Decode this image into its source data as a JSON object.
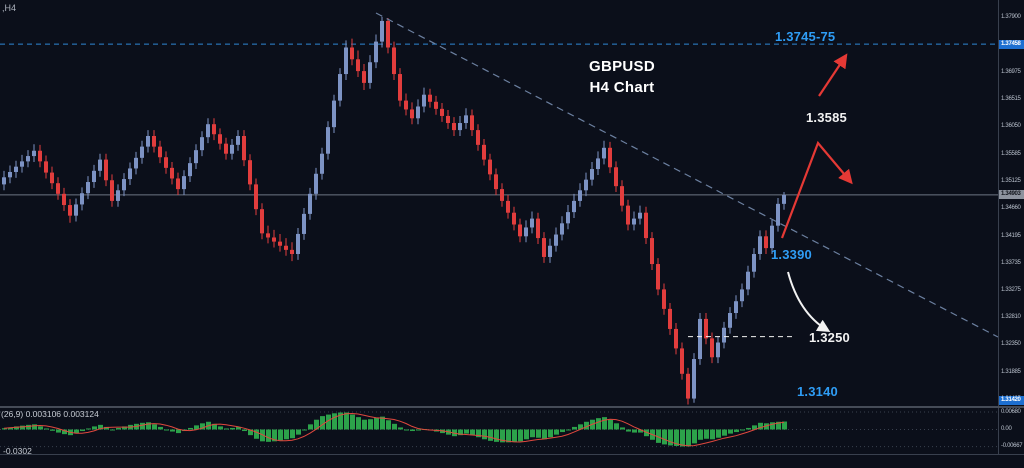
{
  "meta": {
    "symbol_label": ",H4",
    "indicator_label": "(26,9) 0.003106 0.003124",
    "indicator_sublabel": "-0.0302"
  },
  "colors": {
    "background": "#0b0f1a",
    "bull": "#7d93c4",
    "bear": "#e23d3d",
    "histogram": "#2ca24a",
    "signal": "#e0483e",
    "accent_blue": "#2f9df5",
    "zone_line_blue": "#2f86d4",
    "trendline": "#6c80a0",
    "arrow_red": "#e53935",
    "arrow_white": "#f2f2f2",
    "current_price_line": "#6e7683"
  },
  "annotations": {
    "title_line1": "GBPUSD",
    "title_line2": "H4 Chart",
    "level_zone": "1.3745-75",
    "level_3585": "1.3585",
    "level_3390": "1.3390",
    "level_3250": "1.3250",
    "level_3140": "1.3140"
  },
  "price_scale": {
    "ticks": [
      "1.37900",
      "1.37435",
      "1.36975",
      "1.36515",
      "1.36050",
      "1.35585",
      "1.35125",
      "1.34660",
      "1.34195",
      "1.33735",
      "1.33275",
      "1.32810",
      "1.32350",
      "1.31885",
      "1.31425"
    ],
    "current_price": "1.34903",
    "upper_marker": "1.37458",
    "lower_marker": "1.31420"
  },
  "indicator_scale": {
    "labels": [
      "0.00680",
      "0.00",
      "-0.00667"
    ]
  },
  "chart_data": {
    "type": "candlestick",
    "title": "GBPUSD H4 Chart",
    "symbol": "GBPUSD",
    "timeframe": "H4",
    "ylim": [
      1.31324,
      1.38205
    ],
    "key_levels": [
      1.3745,
      1.3775,
      1.3585,
      1.339,
      1.325,
      1.314
    ],
    "current_price": 1.34903,
    "candles": [
      [
        1.3508,
        1.3531,
        1.3498,
        1.352
      ],
      [
        1.352,
        1.354,
        1.351,
        1.3529
      ],
      [
        1.3529,
        1.3548,
        1.3519,
        1.3538
      ],
      [
        1.3538,
        1.3558,
        1.3528,
        1.3547
      ],
      [
        1.3547,
        1.3566,
        1.3537,
        1.3556
      ],
      [
        1.3556,
        1.3576,
        1.3546,
        1.3565
      ],
      [
        1.3565,
        1.3575,
        1.3537,
        1.3547
      ],
      [
        1.3547,
        1.3557,
        1.3518,
        1.3528
      ],
      [
        1.3528,
        1.3538,
        1.35,
        1.351
      ],
      [
        1.351,
        1.352,
        1.3482,
        1.3492
      ],
      [
        1.3492,
        1.3502,
        1.3463,
        1.3473
      ],
      [
        1.3473,
        1.3483,
        1.3443,
        1.3455
      ],
      [
        1.3455,
        1.3484,
        1.3445,
        1.3474
      ],
      [
        1.3474,
        1.3503,
        1.3464,
        1.3493
      ],
      [
        1.3493,
        1.3522,
        1.3483,
        1.3512
      ],
      [
        1.3512,
        1.3541,
        1.3502,
        1.3531
      ],
      [
        1.3531,
        1.356,
        1.3521,
        1.355
      ],
      [
        1.355,
        1.356,
        1.3505,
        1.3515
      ],
      [
        1.3515,
        1.3525,
        1.347,
        1.348
      ],
      [
        1.348,
        1.3508,
        1.347,
        1.3498
      ],
      [
        1.3498,
        1.3527,
        1.3488,
        1.3517
      ],
      [
        1.3517,
        1.3545,
        1.3507,
        1.3535
      ],
      [
        1.3535,
        1.3563,
        1.3525,
        1.3553
      ],
      [
        1.3553,
        1.3582,
        1.3543,
        1.3572
      ],
      [
        1.3572,
        1.36,
        1.3562,
        1.359
      ],
      [
        1.359,
        1.36,
        1.3562,
        1.3572
      ],
      [
        1.3572,
        1.3582,
        1.3544,
        1.3554
      ],
      [
        1.3554,
        1.3564,
        1.3526,
        1.3536
      ],
      [
        1.3536,
        1.3546,
        1.3508,
        1.3518
      ],
      [
        1.3518,
        1.3528,
        1.349,
        1.35
      ],
      [
        1.35,
        1.3532,
        1.349,
        1.3522
      ],
      [
        1.3522,
        1.3554,
        1.3512,
        1.3544
      ],
      [
        1.3544,
        1.3576,
        1.3534,
        1.3566
      ],
      [
        1.3566,
        1.3598,
        1.3556,
        1.3588
      ],
      [
        1.3588,
        1.362,
        1.3578,
        1.361
      ],
      [
        1.361,
        1.362,
        1.3583,
        1.3593
      ],
      [
        1.3593,
        1.3603,
        1.3567,
        1.3577
      ],
      [
        1.3577,
        1.3587,
        1.355,
        1.356
      ],
      [
        1.356,
        1.3585,
        1.355,
        1.3575
      ],
      [
        1.3575,
        1.36,
        1.3565,
        1.359
      ],
      [
        1.359,
        1.36,
        1.3539,
        1.3549
      ],
      [
        1.3549,
        1.3559,
        1.3498,
        1.3508
      ],
      [
        1.3508,
        1.3518,
        1.3456,
        1.3466
      ],
      [
        1.3466,
        1.3476,
        1.3415,
        1.3425
      ],
      [
        1.3425,
        1.3438,
        1.3408,
        1.3418
      ],
      [
        1.3418,
        1.3431,
        1.3401,
        1.3411
      ],
      [
        1.3411,
        1.3424,
        1.3394,
        1.3404
      ],
      [
        1.3404,
        1.3417,
        1.3387,
        1.3397
      ],
      [
        1.3397,
        1.341,
        1.3378,
        1.339
      ],
      [
        1.339,
        1.3434,
        1.338,
        1.3424
      ],
      [
        1.3424,
        1.3468,
        1.3414,
        1.3458
      ],
      [
        1.3458,
        1.3502,
        1.3448,
        1.3492
      ],
      [
        1.3492,
        1.3536,
        1.3482,
        1.3526
      ],
      [
        1.3526,
        1.357,
        1.3516,
        1.356
      ],
      [
        1.356,
        1.3615,
        1.355,
        1.3605
      ],
      [
        1.3605,
        1.366,
        1.3595,
        1.365
      ],
      [
        1.365,
        1.3705,
        1.364,
        1.3695
      ],
      [
        1.3695,
        1.3752,
        1.3685,
        1.374
      ],
      [
        1.374,
        1.3755,
        1.371,
        1.372
      ],
      [
        1.372,
        1.3735,
        1.369,
        1.37
      ],
      [
        1.37,
        1.3712,
        1.3668,
        1.368
      ],
      [
        1.368,
        1.3727,
        1.367,
        1.3715
      ],
      [
        1.3715,
        1.3762,
        1.3705,
        1.375
      ],
      [
        1.375,
        1.3792,
        1.374,
        1.3785
      ],
      [
        1.3785,
        1.379,
        1.373,
        1.374
      ],
      [
        1.374,
        1.375,
        1.3685,
        1.3695
      ],
      [
        1.3695,
        1.3705,
        1.364,
        1.365
      ],
      [
        1.365,
        1.3662,
        1.3625,
        1.3635
      ],
      [
        1.3635,
        1.3647,
        1.361,
        1.362
      ],
      [
        1.362,
        1.3652,
        1.361,
        1.364
      ],
      [
        1.364,
        1.3672,
        1.363,
        1.366
      ],
      [
        1.366,
        1.367,
        1.3638,
        1.3648
      ],
      [
        1.3648,
        1.3658,
        1.3626,
        1.3636
      ],
      [
        1.3636,
        1.3646,
        1.3614,
        1.3624
      ],
      [
        1.3624,
        1.3634,
        1.3602,
        1.3612
      ],
      [
        1.3612,
        1.3622,
        1.359,
        1.36
      ],
      [
        1.36,
        1.3624,
        1.359,
        1.3612
      ],
      [
        1.3612,
        1.3637,
        1.3602,
        1.3625
      ],
      [
        1.3625,
        1.3635,
        1.359,
        1.36
      ],
      [
        1.36,
        1.361,
        1.3565,
        1.3575
      ],
      [
        1.3575,
        1.3585,
        1.354,
        1.355
      ],
      [
        1.355,
        1.356,
        1.3515,
        1.3525
      ],
      [
        1.3525,
        1.3535,
        1.349,
        1.35
      ],
      [
        1.35,
        1.351,
        1.347,
        1.348
      ],
      [
        1.348,
        1.349,
        1.345,
        1.346
      ],
      [
        1.346,
        1.347,
        1.343,
        1.344
      ],
      [
        1.344,
        1.345,
        1.341,
        1.342
      ],
      [
        1.342,
        1.3447,
        1.341,
        1.3435
      ],
      [
        1.3435,
        1.3462,
        1.3425,
        1.345
      ],
      [
        1.345,
        1.346,
        1.3407,
        1.3417
      ],
      [
        1.3417,
        1.3427,
        1.3375,
        1.3385
      ],
      [
        1.3385,
        1.3416,
        1.3375,
        1.3404
      ],
      [
        1.3404,
        1.3435,
        1.3394,
        1.3423
      ],
      [
        1.3423,
        1.3454,
        1.3413,
        1.3442
      ],
      [
        1.3442,
        1.3473,
        1.3432,
        1.3461
      ],
      [
        1.3461,
        1.3492,
        1.3451,
        1.348
      ],
      [
        1.348,
        1.351,
        1.347,
        1.3498
      ],
      [
        1.3498,
        1.3528,
        1.3488,
        1.3516
      ],
      [
        1.3516,
        1.3546,
        1.3506,
        1.3534
      ],
      [
        1.3534,
        1.3564,
        1.3524,
        1.3552
      ],
      [
        1.3552,
        1.3582,
        1.3542,
        1.357
      ],
      [
        1.357,
        1.358,
        1.3527,
        1.3537
      ],
      [
        1.3537,
        1.3547,
        1.3495,
        1.3505
      ],
      [
        1.3505,
        1.3515,
        1.3462,
        1.3472
      ],
      [
        1.3472,
        1.3482,
        1.343,
        1.344
      ],
      [
        1.344,
        1.3462,
        1.343,
        1.345
      ],
      [
        1.345,
        1.3472,
        1.344,
        1.346
      ],
      [
        1.346,
        1.347,
        1.3407,
        1.3417
      ],
      [
        1.3417,
        1.3427,
        1.3363,
        1.3373
      ],
      [
        1.3373,
        1.3383,
        1.332,
        1.333
      ],
      [
        1.333,
        1.334,
        1.3287,
        1.3297
      ],
      [
        1.3297,
        1.3307,
        1.3253,
        1.3263
      ],
      [
        1.3263,
        1.3273,
        1.322,
        1.323
      ],
      [
        1.323,
        1.324,
        1.3177,
        1.3187
      ],
      [
        1.3187,
        1.3197,
        1.3135,
        1.3145
      ],
      [
        1.3145,
        1.3222,
        1.3138,
        1.3212
      ],
      [
        1.3212,
        1.329,
        1.3202,
        1.328
      ],
      [
        1.328,
        1.329,
        1.3237,
        1.3247
      ],
      [
        1.3247,
        1.3257,
        1.3205,
        1.3215
      ],
      [
        1.3215,
        1.325,
        1.3205,
        1.324
      ],
      [
        1.324,
        1.3275,
        1.323,
        1.3265
      ],
      [
        1.3265,
        1.33,
        1.3255,
        1.329
      ],
      [
        1.329,
        1.332,
        1.328,
        1.331
      ],
      [
        1.331,
        1.334,
        1.33,
        1.333
      ],
      [
        1.333,
        1.337,
        1.332,
        1.336
      ],
      [
        1.336,
        1.34,
        1.335,
        1.339
      ],
      [
        1.339,
        1.343,
        1.338,
        1.342
      ],
      [
        1.342,
        1.343,
        1.339,
        1.34
      ],
      [
        1.34,
        1.3448,
        1.339,
        1.3438
      ],
      [
        1.3438,
        1.3485,
        1.3428,
        1.3475
      ],
      [
        1.3475,
        1.3495,
        1.3465,
        1.349
      ]
    ],
    "indicator": {
      "name": "MACD histogram (26,9)",
      "ylim": [
        -0.00952,
        0.00835
      ],
      "signal_smoothing": 5,
      "values": [
        0.0005,
        0.0008,
        0.0012,
        0.0015,
        0.0018,
        0.002,
        0.0012,
        0.0004,
        -0.0005,
        -0.0012,
        -0.0018,
        -0.0022,
        -0.0015,
        -0.0006,
        0.0004,
        0.0012,
        0.0018,
        0.001,
        0.0,
        0.0006,
        0.0012,
        0.0018,
        0.0022,
        0.0026,
        0.0028,
        0.002,
        0.001,
        0.0,
        -0.0008,
        -0.0014,
        -0.0006,
        0.0006,
        0.0016,
        0.0024,
        0.003,
        0.0022,
        0.0012,
        0.0004,
        0.0006,
        0.001,
        -0.0006,
        -0.0022,
        -0.0036,
        -0.0046,
        -0.0048,
        -0.0046,
        -0.0042,
        -0.0038,
        -0.0034,
        -0.002,
        0.0,
        0.002,
        0.0038,
        0.0052,
        0.0058,
        0.0063,
        0.0066,
        0.0066,
        0.0058,
        0.0048,
        0.0038,
        0.004,
        0.0046,
        0.005,
        0.0036,
        0.0022,
        0.0008,
        0.0,
        -0.0006,
        -0.0004,
        0.0002,
        -0.0002,
        -0.0008,
        -0.0014,
        -0.002,
        -0.0026,
        -0.0022,
        -0.0016,
        -0.0022,
        -0.003,
        -0.0038,
        -0.0044,
        -0.0048,
        -0.005,
        -0.005,
        -0.0048,
        -0.0046,
        -0.0038,
        -0.003,
        -0.0032,
        -0.0038,
        -0.003,
        -0.002,
        -0.001,
        0.0,
        0.001,
        0.002,
        0.003,
        0.0038,
        0.0044,
        0.0048,
        0.0038,
        0.0024,
        0.0008,
        -0.0008,
        -0.0012,
        -0.0012,
        -0.0026,
        -0.004,
        -0.0052,
        -0.0058,
        -0.0062,
        -0.0064,
        -0.0066,
        -0.0066,
        -0.0054,
        -0.004,
        -0.0036,
        -0.0038,
        -0.0032,
        -0.0024,
        -0.0016,
        -0.001,
        -0.0004,
        0.0006,
        0.0016,
        0.0026,
        0.0024,
        0.0028,
        0.003,
        0.0031
      ]
    }
  }
}
